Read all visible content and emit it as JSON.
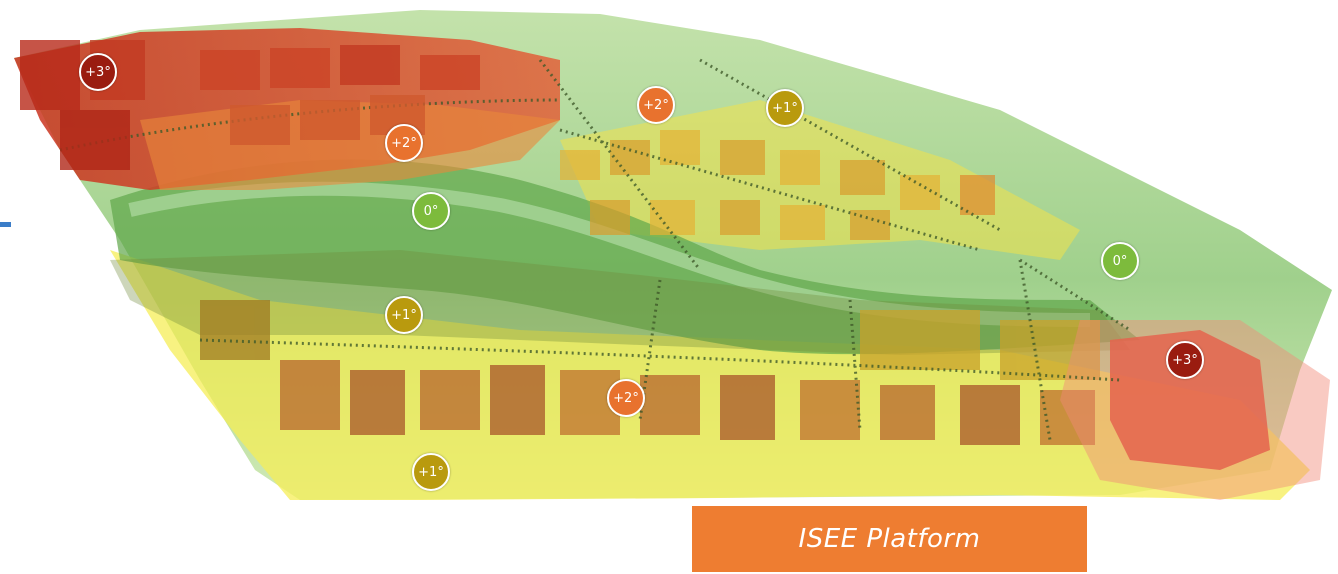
{
  "image": {
    "label": "ISEE Platform",
    "label_color": "#ee7d31",
    "accent_line_color": "#3b7dc8"
  },
  "markers": [
    {
      "id": "m1",
      "text": "+3°",
      "color": "#9a1c10"
    },
    {
      "id": "m2",
      "text": "+2°",
      "color": "#e8722e"
    },
    {
      "id": "m3",
      "text": "0°",
      "color": "#7dbb3c"
    },
    {
      "id": "m4",
      "text": "+2°",
      "color": "#e8722e"
    },
    {
      "id": "m5",
      "text": "+1°",
      "color": "#b99a0e"
    },
    {
      "id": "m6",
      "text": "0°",
      "color": "#7dbb3c"
    },
    {
      "id": "m7",
      "text": "+1°",
      "color": "#b99a0e"
    },
    {
      "id": "m8",
      "text": "+3°",
      "color": "#9a1c10"
    },
    {
      "id": "m9",
      "text": "+2°",
      "color": "#e8722e"
    },
    {
      "id": "m10",
      "text": "+1°",
      "color": "#b99a0e"
    }
  ]
}
